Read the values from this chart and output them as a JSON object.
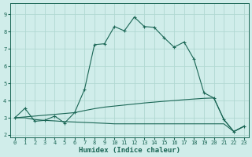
{
  "xlabel": "Humidex (Indice chaleur)",
  "background_color": "#d0edea",
  "grid_color": "#b0d8d2",
  "line_color": "#1a6655",
  "xlim": [
    -0.5,
    23.5
  ],
  "ylim": [
    1.85,
    9.65
  ],
  "yticks": [
    2,
    3,
    4,
    5,
    6,
    7,
    8,
    9
  ],
  "xticks": [
    0,
    1,
    2,
    3,
    4,
    5,
    6,
    7,
    8,
    9,
    10,
    11,
    12,
    13,
    14,
    15,
    16,
    17,
    18,
    19,
    20,
    21,
    22,
    23
  ],
  "main_x": [
    0,
    1,
    2,
    3,
    4,
    5,
    6,
    7,
    8,
    9,
    10,
    11,
    12,
    13,
    14,
    15,
    16,
    17,
    18,
    19,
    20,
    21,
    22,
    23
  ],
  "main_y": [
    3.0,
    3.55,
    2.8,
    2.85,
    3.1,
    2.7,
    3.3,
    4.65,
    7.25,
    7.3,
    8.3,
    8.05,
    8.85,
    8.3,
    8.25,
    7.65,
    7.1,
    7.4,
    6.4,
    4.45,
    4.15,
    2.9,
    2.2,
    2.5
  ],
  "mid_x": [
    0,
    1,
    2,
    3,
    4,
    5,
    6,
    7,
    8,
    9,
    10,
    11,
    12,
    13,
    14,
    15,
    16,
    17,
    18,
    19,
    20,
    21,
    22,
    23
  ],
  "mid_y": [
    3.0,
    3.05,
    3.1,
    3.15,
    3.2,
    3.25,
    3.3,
    3.42,
    3.53,
    3.62,
    3.68,
    3.74,
    3.8,
    3.86,
    3.91,
    3.96,
    4.0,
    4.05,
    4.09,
    4.13,
    4.15,
    2.9,
    2.2,
    2.5
  ],
  "low_x": [
    0,
    1,
    2,
    3,
    4,
    5,
    9,
    10,
    14,
    20,
    21,
    22,
    23
  ],
  "low_y": [
    3.0,
    3.0,
    2.9,
    2.85,
    2.82,
    2.78,
    2.68,
    2.65,
    2.65,
    2.65,
    2.65,
    2.2,
    2.5
  ],
  "tick_fontsize": 5.0,
  "xlabel_fontsize": 6.5
}
